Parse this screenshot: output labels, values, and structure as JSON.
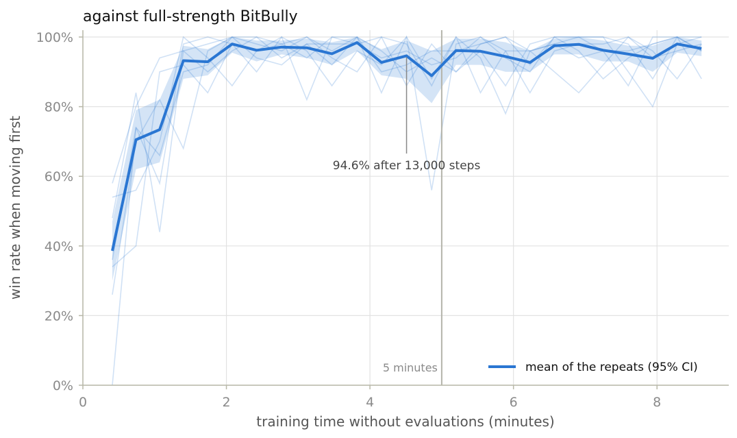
{
  "chart_data": {
    "type": "line",
    "title": "against full-strength BitBully",
    "xlabel": "training time without evaluations (minutes)",
    "ylabel": "win rate when moving first",
    "xlim": [
      0,
      9.0
    ],
    "ylim": [
      0,
      1.0
    ],
    "x_ticks": [
      0,
      2,
      4,
      6,
      8
    ],
    "x_tick_labels": [
      "0",
      "2",
      "4",
      "6",
      "8"
    ],
    "y_ticks": [
      0,
      0.2,
      0.4,
      0.6,
      0.8,
      1.0
    ],
    "y_tick_labels": [
      "0%",
      "20%",
      "40%",
      "60%",
      "80%",
      "100%"
    ],
    "grid": true,
    "legend_placement": "lower-right",
    "colors": {
      "mean": "#2a76d2",
      "repeats": "#2a76d2",
      "ci_band": "#2a76d2",
      "grid": "#e2e2e2",
      "axis": "#b8b8a8",
      "marker_line": "#b4b4aa",
      "annotation_line": "#888888"
    },
    "series": [
      {
        "name": "mean of the repeats (95% CI)",
        "x": [
          0.41,
          0.74,
          1.07,
          1.4,
          1.74,
          2.08,
          2.42,
          2.77,
          3.12,
          3.47,
          3.82,
          4.16,
          4.51,
          4.86,
          5.2,
          5.54,
          5.89,
          6.23,
          6.57,
          6.91,
          7.25,
          7.6,
          7.94,
          8.28,
          8.62
        ],
        "y": [
          0.386,
          0.705,
          0.734,
          0.932,
          0.929,
          0.98,
          0.962,
          0.971,
          0.969,
          0.952,
          0.984,
          0.927,
          0.946,
          0.889,
          0.961,
          0.959,
          0.944,
          0.927,
          0.975,
          0.979,
          0.962,
          0.951,
          0.939,
          0.98,
          0.967
        ],
        "ci_low": [
          0.3,
          0.62,
          0.64,
          0.88,
          0.89,
          0.955,
          0.93,
          0.95,
          0.94,
          0.92,
          0.96,
          0.89,
          0.88,
          0.81,
          0.92,
          0.92,
          0.9,
          0.9,
          0.95,
          0.95,
          0.93,
          0.93,
          0.9,
          0.955,
          0.945
        ],
        "ci_high": [
          0.47,
          0.79,
          0.82,
          0.975,
          0.965,
          1.0,
          0.99,
          0.99,
          0.995,
          0.985,
          1.0,
          0.965,
          0.99,
          0.96,
          0.995,
          0.995,
          0.985,
          0.96,
          0.995,
          1.0,
          0.99,
          0.975,
          0.975,
          1.0,
          0.99
        ]
      }
    ],
    "repeats": [
      {
        "x": [
          0.41,
          0.74,
          1.07,
          1.4,
          1.74,
          2.08,
          2.42,
          2.77,
          3.12,
          3.47,
          3.82,
          4.16,
          4.51,
          4.86,
          5.2,
          5.54,
          5.89,
          6.23,
          6.57,
          6.91,
          7.25,
          7.6,
          7.94,
          8.28,
          8.62
        ],
        "y": [
          0.0,
          0.74,
          0.58,
          0.98,
          1.0,
          0.98,
          0.9,
          1.0,
          0.82,
          1.0,
          1.0,
          0.84,
          1.0,
          0.56,
          0.98,
          1.0,
          0.94,
          0.9,
          1.0,
          1.0,
          0.96,
          0.86,
          1.0,
          1.0,
          0.96
        ]
      },
      {
        "x": [
          0.41,
          0.74,
          1.07,
          1.4,
          1.74,
          2.08,
          2.42,
          2.77,
          3.12,
          3.47,
          3.82,
          4.16,
          4.51,
          4.86,
          5.2,
          5.54,
          5.89,
          6.23,
          6.57,
          6.91,
          7.25,
          7.6,
          7.94,
          8.28,
          8.62
        ],
        "y": [
          0.58,
          0.8,
          0.94,
          0.96,
          0.98,
          1.0,
          1.0,
          0.98,
          1.0,
          0.96,
          1.0,
          0.96,
          0.9,
          0.94,
          0.9,
          0.98,
          1.0,
          0.92,
          1.0,
          1.0,
          1.0,
          0.98,
          0.88,
          1.0,
          1.0
        ]
      },
      {
        "x": [
          0.41,
          0.74,
          1.07,
          1.4,
          1.74,
          2.08,
          2.42,
          2.77,
          3.12,
          3.47,
          3.82,
          4.16,
          4.51,
          4.86,
          5.2,
          5.54,
          5.89,
          6.23,
          6.57,
          6.91,
          7.25,
          7.6,
          7.94,
          8.28,
          8.62
        ],
        "y": [
          0.34,
          0.4,
          0.9,
          0.92,
          0.84,
          0.98,
          0.96,
          1.0,
          0.96,
          0.86,
          0.96,
          0.92,
          1.0,
          0.88,
          1.0,
          0.84,
          0.96,
          0.96,
          0.9,
          0.84,
          0.92,
          1.0,
          0.96,
          0.88,
          0.98
        ]
      },
      {
        "x": [
          0.41,
          0.74,
          1.07,
          1.4,
          1.74,
          2.08,
          2.42,
          2.77,
          3.12,
          3.47,
          3.82,
          4.16,
          4.51,
          4.86,
          5.2,
          5.54,
          5.89,
          6.23,
          6.57,
          6.91,
          7.25,
          7.6,
          7.94,
          8.28,
          8.62
        ],
        "y": [
          0.48,
          0.84,
          0.44,
          0.96,
          0.9,
          0.96,
          1.0,
          0.94,
          0.98,
          0.98,
          0.98,
          1.0,
          0.86,
          0.98,
          0.9,
          0.96,
          0.86,
          0.98,
          1.0,
          0.96,
          0.88,
          0.94,
          0.98,
          1.0,
          0.88
        ]
      },
      {
        "x": [
          0.41,
          0.74,
          1.07,
          1.4,
          1.74,
          2.08,
          2.42,
          2.77,
          3.12,
          3.47,
          3.82,
          4.16,
          4.51,
          4.86,
          5.2,
          5.54,
          5.89,
          6.23,
          6.57,
          6.91,
          7.25,
          7.6,
          7.94,
          8.28,
          8.62
        ],
        "y": [
          0.26,
          0.7,
          0.82,
          0.68,
          0.96,
          1.0,
          0.98,
          0.96,
          1.0,
          0.94,
          0.9,
          1.0,
          0.98,
          0.86,
          1.0,
          0.94,
          0.78,
          0.96,
          0.98,
          1.0,
          1.0,
          0.9,
          0.8,
          0.98,
          1.0
        ]
      },
      {
        "x": [
          0.41,
          0.74,
          1.07,
          1.4,
          1.74,
          2.08,
          2.42,
          2.77,
          3.12,
          3.47,
          3.82,
          4.16,
          4.51,
          4.86,
          5.2,
          5.54,
          5.89,
          6.23,
          6.57,
          6.91,
          7.25,
          7.6,
          7.94,
          8.28,
          8.62
        ],
        "y": [
          0.54,
          0.56,
          0.7,
          1.0,
          0.94,
          0.86,
          0.96,
          0.98,
          0.94,
          1.0,
          0.98,
          0.94,
          0.96,
          0.92,
          0.94,
          1.0,
          0.96,
          0.84,
          0.96,
          0.98,
          0.98,
          1.0,
          0.94,
          0.96,
          0.98
        ]
      },
      {
        "x": [
          0.41,
          0.74,
          1.07,
          1.4,
          1.74,
          2.08,
          2.42,
          2.77,
          3.12,
          3.47,
          3.82,
          4.16,
          4.51,
          4.86,
          5.2,
          5.54,
          5.89,
          6.23,
          6.57,
          6.91,
          7.25,
          7.6,
          7.94,
          8.28,
          8.62
        ],
        "y": [
          0.36,
          0.74,
          0.66,
          0.9,
          0.92,
          1.0,
          0.94,
          0.92,
          0.98,
          0.92,
          1.0,
          0.9,
          0.92,
          0.96,
          0.96,
          0.98,
          1.0,
          0.96,
          0.98,
          0.94,
          0.96,
          0.96,
          0.98,
          1.0,
          0.96
        ]
      }
    ],
    "annotations": [
      {
        "text": "94.6% after 13,000 steps",
        "x": 4.51,
        "y": 0.946
      },
      {
        "text": "5 minutes",
        "x": 5.0
      }
    ]
  }
}
